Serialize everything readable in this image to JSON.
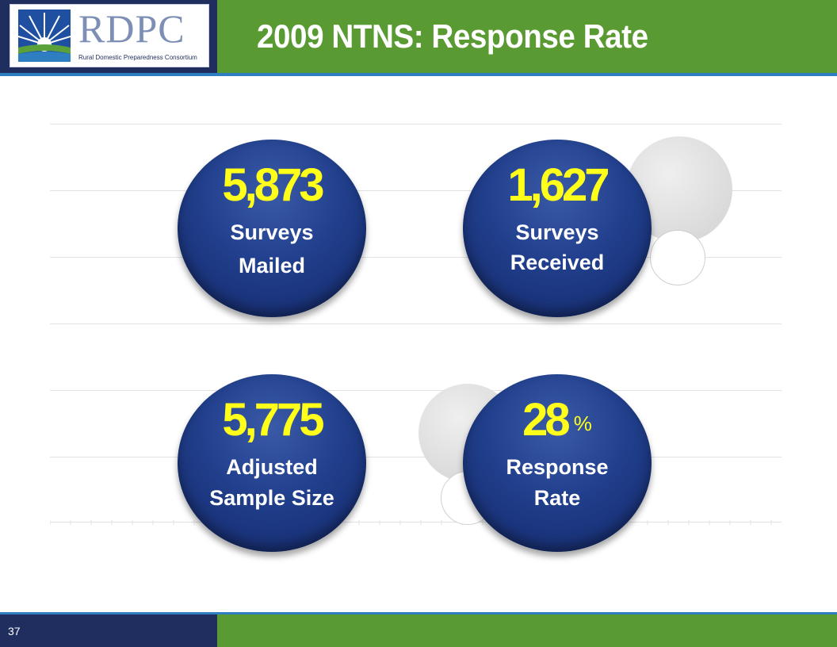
{
  "header": {
    "logo_text": "RDPC",
    "logo_subtitle": "Rural Domestic Preparedness Consortium",
    "title": "2009 NTNS:  Response Rate"
  },
  "stats": [
    {
      "value": "5,873",
      "line1": "Surveys",
      "line2": "Mailed"
    },
    {
      "value": "1,627",
      "line1": "Surveys",
      "line2": "Received"
    },
    {
      "value": "5,775",
      "line1": "Adjusted",
      "line2": "Sample Size"
    },
    {
      "value": "28",
      "suffix": "%",
      "line1": "Response",
      "line2": "Rate"
    }
  ],
  "footer": {
    "page_number": "37"
  },
  "colors": {
    "navy": "#1f2e5f",
    "green": "#5a9a32",
    "accent_blue": "#2f7ec2",
    "number_yellow": "#ffff1a"
  }
}
